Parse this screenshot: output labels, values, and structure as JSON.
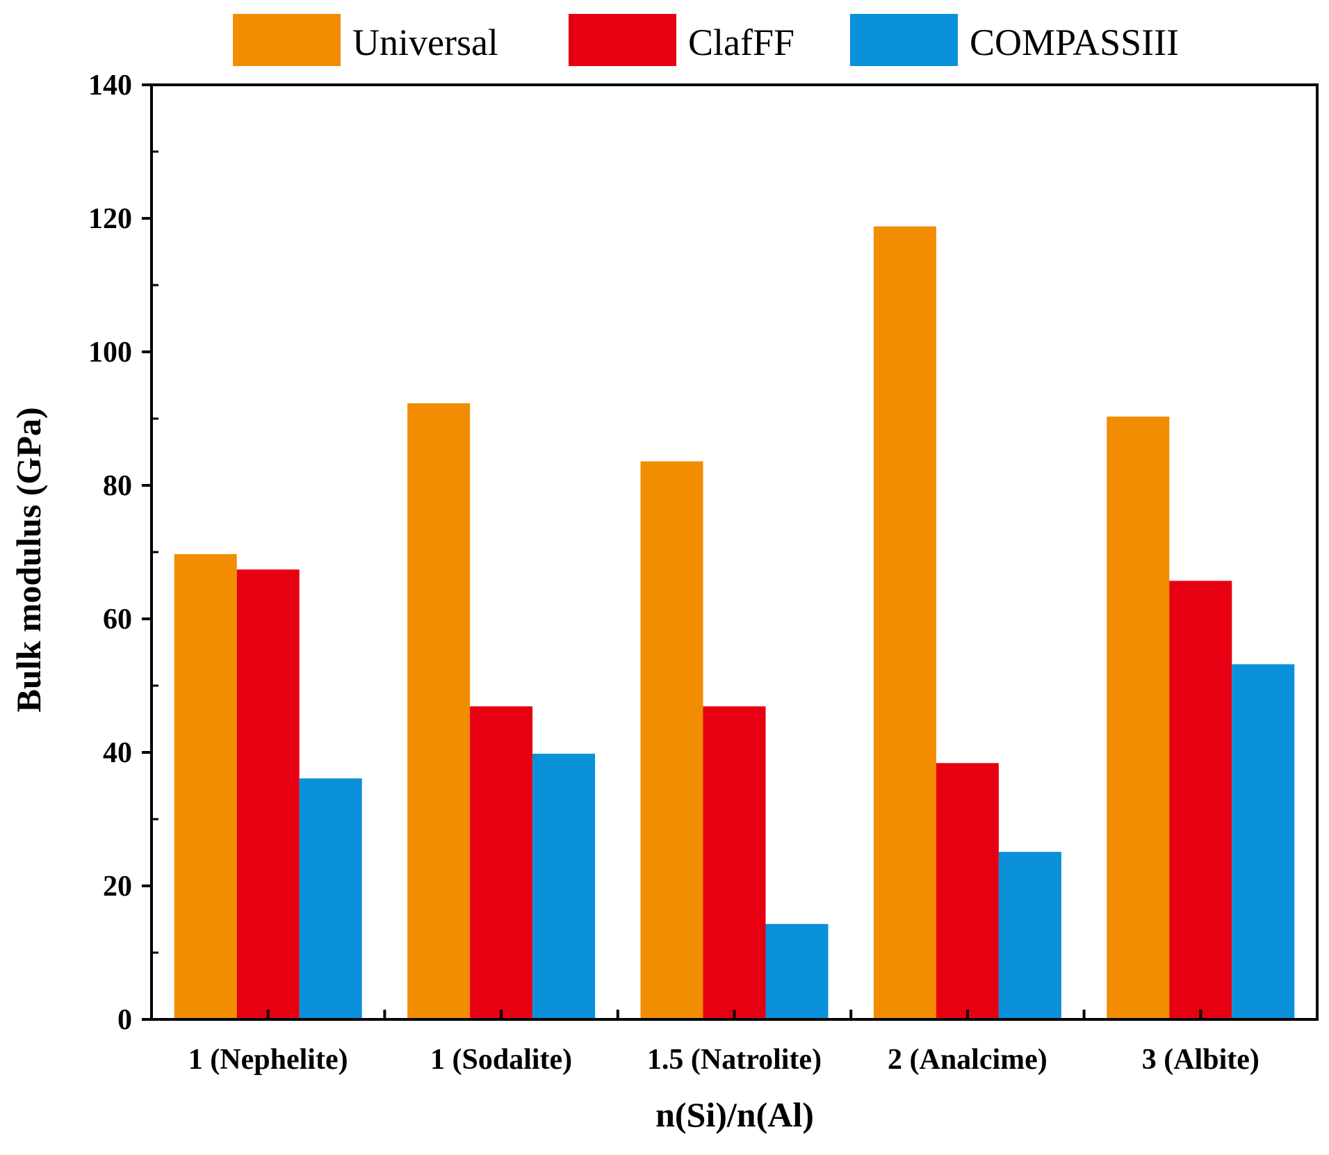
{
  "chart_data": {
    "type": "bar",
    "title": "",
    "xlabel": "n(Si)/n(Al)",
    "ylabel": "Bulk modulus (GPa)",
    "ylim": [
      0,
      140
    ],
    "yticks": [
      0,
      20,
      40,
      60,
      80,
      100,
      120,
      140
    ],
    "ytick_labels": [
      "0",
      "20",
      "40",
      "60",
      "80",
      "100",
      "120",
      "140"
    ],
    "categories": [
      "1 (Nephelite)",
      "1 (Sodalite)",
      "1.5 (Natrolite)",
      "2 (Analcime)",
      "3 (Albite)"
    ],
    "series": [
      {
        "name": "Universal",
        "color": "#F28C00",
        "values": [
          69.7,
          92.3,
          83.6,
          118.8,
          90.3
        ]
      },
      {
        "name": "ClafFF",
        "color": "#E60012",
        "values": [
          67.4,
          46.9,
          46.9,
          38.4,
          65.7
        ]
      },
      {
        "name": "COMPASSIII",
        "color": "#0A91D9",
        "values": [
          36.1,
          39.8,
          14.3,
          25.1,
          53.2
        ]
      }
    ],
    "legend_position": "top",
    "grid": false
  }
}
